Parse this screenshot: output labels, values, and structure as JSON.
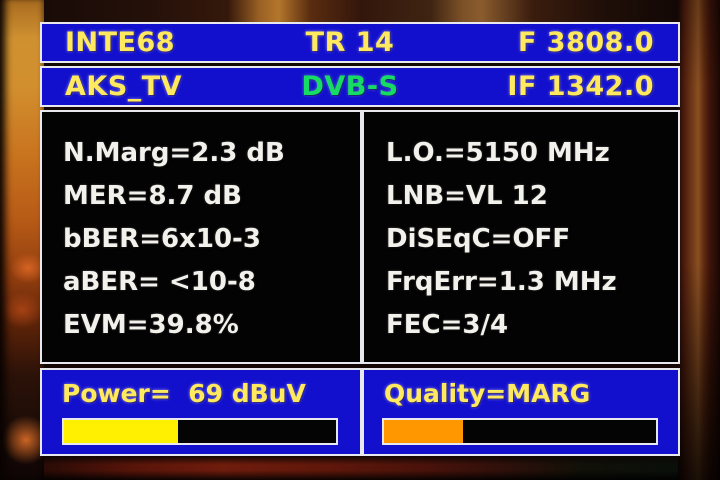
{
  "header": {
    "satellite": "INTE68",
    "transponder": "TR 14",
    "frequency": "F 3808.0"
  },
  "subheader": {
    "channel": "AKS_TV",
    "standard": "DVB-S",
    "if_frequency": "IF 1342.0"
  },
  "signal": {
    "left_rows": [
      "N.Marg=2.3 dB",
      "MER=8.7 dB",
      "bBER=6x10-3",
      "aBER= <10-8",
      "EVM=39.8%"
    ],
    "right_rows": [
      "L.O.=5150 MHz",
      "LNB=VL 12",
      "DiSEqC=OFF",
      "FrqErr=1.3 MHz",
      "FEC=3/4"
    ]
  },
  "power": {
    "label": "Power=  69 dBuV",
    "percent": 42
  },
  "quality": {
    "label": "Quality=MARG",
    "percent": 29
  },
  "colors": {
    "panel-blue": "#1310cd",
    "panel-black": "#030303",
    "panel-border": "#e8e8ee",
    "osd-yellow": "#ffe95e",
    "osd-green": "#17dc64",
    "osd-white": "#f3f1ec",
    "bar-yellow": "#ffef00",
    "bar-orange": "#ff9800"
  }
}
